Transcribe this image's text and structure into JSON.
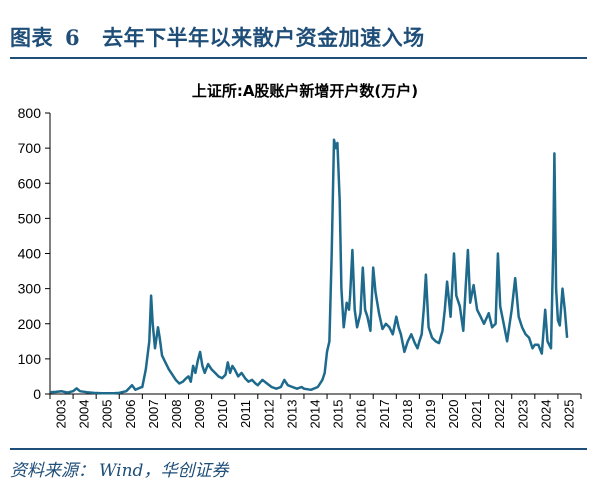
{
  "figure": {
    "label": "图表",
    "number": "6",
    "caption": "去年下半年以来散户资金加速入场"
  },
  "source": {
    "prefix": "资料来源：",
    "text": "Wind，华创证券"
  },
  "colors": {
    "title": "#1f4e79",
    "line": "#1e6a8c",
    "axis": "#000000"
  },
  "chart_data": {
    "type": "line",
    "title": "上证所:A股账户新增开户数(万户)",
    "xlabel": "",
    "ylabel": "",
    "ylim": [
      0,
      800
    ],
    "yticks": [
      0,
      100,
      200,
      300,
      400,
      500,
      600,
      700,
      800
    ],
    "xticks": [
      "2003",
      "2004",
      "2005",
      "2006",
      "2007",
      "2008",
      "2009",
      "2010",
      "2011",
      "2012",
      "2013",
      "2014",
      "2015",
      "2016",
      "2017",
      "2018",
      "2019",
      "2020",
      "2021",
      "2022",
      "2023",
      "2024",
      "2025"
    ],
    "grid": false,
    "legend": "none",
    "series": [
      {
        "name": "",
        "points": [
          [
            2003.0,
            5
          ],
          [
            2003.25,
            6
          ],
          [
            2003.5,
            8
          ],
          [
            2003.75,
            4
          ],
          [
            2004.0,
            8
          ],
          [
            2004.15,
            16
          ],
          [
            2004.3,
            8
          ],
          [
            2004.6,
            5
          ],
          [
            2004.9,
            3
          ],
          [
            2005.25,
            2
          ],
          [
            2005.75,
            2
          ],
          [
            2006.0,
            3
          ],
          [
            2006.3,
            8
          ],
          [
            2006.55,
            25
          ],
          [
            2006.7,
            12
          ],
          [
            2006.9,
            18
          ],
          [
            2007.0,
            20
          ],
          [
            2007.15,
            70
          ],
          [
            2007.3,
            150
          ],
          [
            2007.38,
            280
          ],
          [
            2007.45,
            200
          ],
          [
            2007.55,
            130
          ],
          [
            2007.68,
            190
          ],
          [
            2007.75,
            160
          ],
          [
            2007.85,
            110
          ],
          [
            2008.0,
            90
          ],
          [
            2008.15,
            70
          ],
          [
            2008.3,
            55
          ],
          [
            2008.45,
            40
          ],
          [
            2008.6,
            30
          ],
          [
            2008.75,
            35
          ],
          [
            2008.9,
            45
          ],
          [
            2009.0,
            50
          ],
          [
            2009.1,
            35
          ],
          [
            2009.2,
            80
          ],
          [
            2009.3,
            60
          ],
          [
            2009.4,
            95
          ],
          [
            2009.5,
            120
          ],
          [
            2009.6,
            80
          ],
          [
            2009.7,
            60
          ],
          [
            2009.85,
            85
          ],
          [
            2010.0,
            70
          ],
          [
            2010.15,
            60
          ],
          [
            2010.3,
            50
          ],
          [
            2010.45,
            45
          ],
          [
            2010.6,
            55
          ],
          [
            2010.7,
            90
          ],
          [
            2010.8,
            60
          ],
          [
            2010.9,
            80
          ],
          [
            2011.0,
            70
          ],
          [
            2011.15,
            50
          ],
          [
            2011.3,
            60
          ],
          [
            2011.45,
            45
          ],
          [
            2011.6,
            35
          ],
          [
            2011.75,
            40
          ],
          [
            2011.9,
            30
          ],
          [
            2012.0,
            25
          ],
          [
            2012.2,
            40
          ],
          [
            2012.4,
            30
          ],
          [
            2012.6,
            20
          ],
          [
            2012.8,
            15
          ],
          [
            2013.0,
            20
          ],
          [
            2013.15,
            40
          ],
          [
            2013.3,
            25
          ],
          [
            2013.5,
            20
          ],
          [
            2013.7,
            15
          ],
          [
            2013.9,
            20
          ],
          [
            2014.0,
            15
          ],
          [
            2014.3,
            12
          ],
          [
            2014.6,
            20
          ],
          [
            2014.8,
            40
          ],
          [
            2014.9,
            60
          ],
          [
            2015.0,
            120
          ],
          [
            2015.1,
            150
          ],
          [
            2015.2,
            400
          ],
          [
            2015.3,
            724
          ],
          [
            2015.38,
            700
          ],
          [
            2015.45,
            715
          ],
          [
            2015.55,
            550
          ],
          [
            2015.62,
            300
          ],
          [
            2015.72,
            190
          ],
          [
            2015.85,
            260
          ],
          [
            2015.95,
            240
          ],
          [
            2016.0,
            280
          ],
          [
            2016.1,
            410
          ],
          [
            2016.2,
            240
          ],
          [
            2016.3,
            190
          ],
          [
            2016.45,
            230
          ],
          [
            2016.55,
            360
          ],
          [
            2016.65,
            240
          ],
          [
            2016.75,
            220
          ],
          [
            2016.88,
            180
          ],
          [
            2017.0,
            360
          ],
          [
            2017.1,
            290
          ],
          [
            2017.25,
            230
          ],
          [
            2017.4,
            185
          ],
          [
            2017.55,
            200
          ],
          [
            2017.7,
            190
          ],
          [
            2017.85,
            170
          ],
          [
            2018.0,
            220
          ],
          [
            2018.1,
            190
          ],
          [
            2018.2,
            170
          ],
          [
            2018.35,
            120
          ],
          [
            2018.5,
            150
          ],
          [
            2018.65,
            170
          ],
          [
            2018.8,
            145
          ],
          [
            2018.92,
            130
          ],
          [
            2019.0,
            150
          ],
          [
            2019.1,
            170
          ],
          [
            2019.2,
            250
          ],
          [
            2019.28,
            340
          ],
          [
            2019.4,
            190
          ],
          [
            2019.55,
            160
          ],
          [
            2019.7,
            150
          ],
          [
            2019.85,
            145
          ],
          [
            2020.0,
            180
          ],
          [
            2020.1,
            240
          ],
          [
            2020.2,
            320
          ],
          [
            2020.35,
            220
          ],
          [
            2020.5,
            400
          ],
          [
            2020.6,
            280
          ],
          [
            2020.75,
            250
          ],
          [
            2020.9,
            180
          ],
          [
            2021.0,
            300
          ],
          [
            2021.1,
            410
          ],
          [
            2021.2,
            260
          ],
          [
            2021.35,
            310
          ],
          [
            2021.5,
            240
          ],
          [
            2021.65,
            220
          ],
          [
            2021.8,
            200
          ],
          [
            2022.0,
            230
          ],
          [
            2022.15,
            190
          ],
          [
            2022.3,
            200
          ],
          [
            2022.4,
            400
          ],
          [
            2022.5,
            250
          ],
          [
            2022.65,
            200
          ],
          [
            2022.8,
            150
          ],
          [
            2023.0,
            240
          ],
          [
            2023.15,
            330
          ],
          [
            2023.3,
            220
          ],
          [
            2023.45,
            190
          ],
          [
            2023.6,
            170
          ],
          [
            2023.75,
            160
          ],
          [
            2023.9,
            130
          ],
          [
            2024.0,
            140
          ],
          [
            2024.15,
            140
          ],
          [
            2024.3,
            115
          ],
          [
            2024.45,
            240
          ],
          [
            2024.55,
            150
          ],
          [
            2024.7,
            130
          ],
          [
            2024.8,
            420
          ],
          [
            2024.85,
            685
          ],
          [
            2024.92,
            300
          ],
          [
            2025.0,
            210
          ],
          [
            2025.08,
            195
          ],
          [
            2025.2,
            300
          ],
          [
            2025.3,
            240
          ],
          [
            2025.4,
            160
          ]
        ]
      }
    ]
  }
}
